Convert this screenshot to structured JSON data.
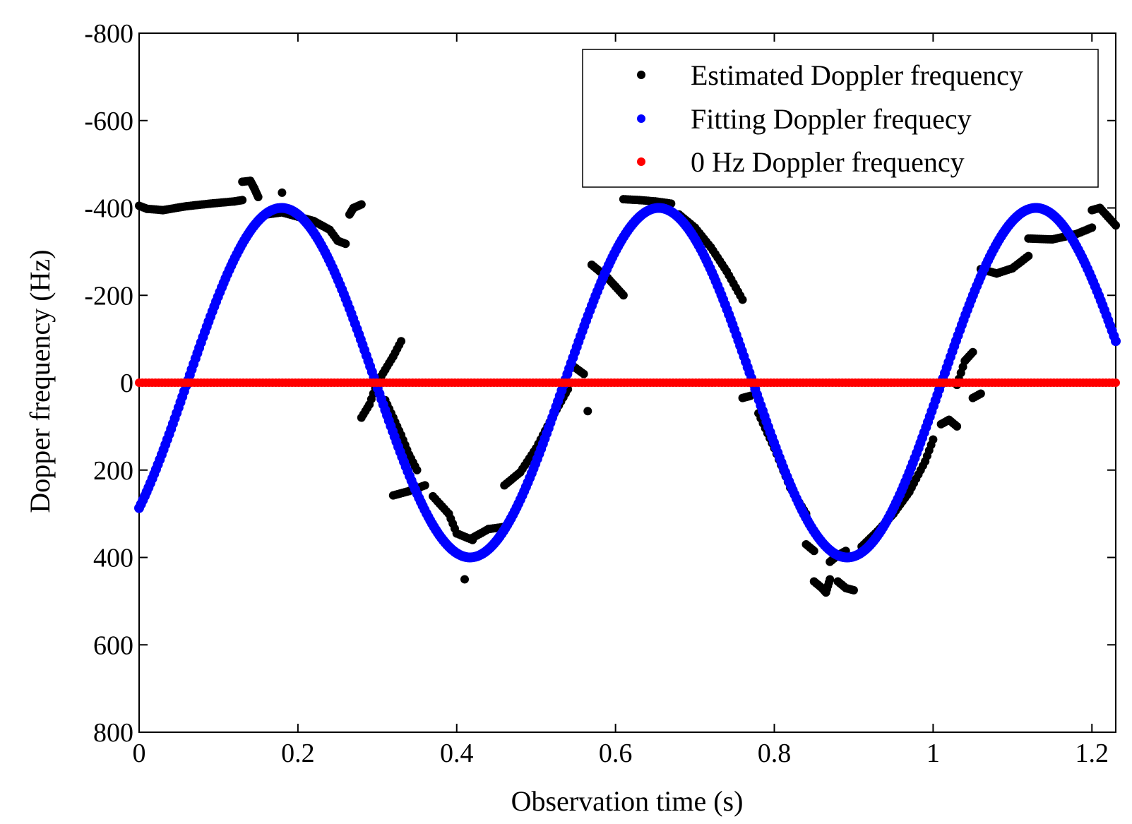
{
  "chart_data": {
    "type": "scatter",
    "title": "",
    "xlabel": "Observation time (s)",
    "ylabel": "Dopper frequency (Hz)",
    "xlim": [
      0,
      1.23
    ],
    "ylim": [
      -800,
      800
    ],
    "y_reversed": true,
    "grid": false,
    "legend_position": "top-right",
    "x_ticks": [
      0,
      0.2,
      0.4,
      0.6,
      0.8,
      1,
      1.2
    ],
    "x_tick_labels": [
      "0",
      "0.2",
      "0.4",
      "0.6",
      "0.8",
      "1",
      "1.2"
    ],
    "y_ticks": [
      -800,
      -600,
      -400,
      -200,
      0,
      200,
      400,
      600,
      800
    ],
    "y_tick_labels": [
      "-800",
      "-600",
      "-400",
      "-200",
      "0",
      "200",
      "400",
      "600",
      "800"
    ],
    "series": [
      {
        "name": "Estimated Doppler frequency",
        "color": "#000000",
        "kind": "segments",
        "segments": [
          {
            "x": [
              0.0,
              0.01,
              0.03,
              0.06,
              0.09,
              0.12,
              0.13
            ],
            "y": [
              -405,
              -398,
              -395,
              -404,
              -410,
              -415,
              -418
            ]
          },
          {
            "x": [
              0.13,
              0.14,
              0.145,
              0.15
            ],
            "y": [
              -460,
              -462,
              -445,
              -425
            ]
          },
          {
            "x": [
              0.16,
              0.18,
              0.2,
              0.22,
              0.24,
              0.25,
              0.26
            ],
            "y": [
              -385,
              -390,
              -380,
              -370,
              -350,
              -325,
              -318
            ]
          },
          {
            "x": [
              0.18
            ],
            "y": [
              -435
            ]
          },
          {
            "x": [
              0.265,
              0.27,
              0.28
            ],
            "y": [
              -385,
              -400,
              -408
            ]
          },
          {
            "x": [
              0.28,
              0.29,
              0.3,
              0.31,
              0.32,
              0.33
            ],
            "y": [
              80,
              50,
              0,
              -30,
              -60,
              -95
            ]
          },
          {
            "x": [
              0.31,
              0.32,
              0.33,
              0.34,
              0.35
            ],
            "y": [
              40,
              80,
              120,
              165,
              200
            ]
          },
          {
            "x": [
              0.32,
              0.34,
              0.36
            ],
            "y": [
              258,
              248,
              235
            ]
          },
          {
            "x": [
              0.37,
              0.39,
              0.4,
              0.42
            ],
            "y": [
              260,
              300,
              345,
              360
            ]
          },
          {
            "x": [
              0.41
            ],
            "y": [
              450
            ]
          },
          {
            "x": [
              0.42,
              0.44,
              0.46
            ],
            "y": [
              355,
              335,
              330
            ]
          },
          {
            "x": [
              0.46,
              0.48,
              0.5,
              0.52,
              0.54
            ],
            "y": [
              235,
              205,
              150,
              80,
              15
            ]
          },
          {
            "x": [
              0.545,
              0.56
            ],
            "y": [
              -40,
              -20
            ]
          },
          {
            "x": [
              0.565
            ],
            "y": [
              65
            ]
          },
          {
            "x": [
              0.57,
              0.58,
              0.59,
              0.6,
              0.61
            ],
            "y": [
              -270,
              -255,
              -240,
              -220,
              -200
            ]
          },
          {
            "x": [
              0.61,
              0.63,
              0.65,
              0.67
            ],
            "y": [
              -420,
              -418,
              -415,
              -410
            ]
          },
          {
            "x": [
              0.68,
              0.7,
              0.72,
              0.74,
              0.76
            ],
            "y": [
              -385,
              -355,
              -310,
              -255,
              -190
            ]
          },
          {
            "x": [
              0.76,
              0.77
            ],
            "y": [
              35,
              30
            ]
          },
          {
            "x": [
              0.78,
              0.8,
              0.82,
              0.84
            ],
            "y": [
              70,
              150,
              240,
              300
            ]
          },
          {
            "x": [
              0.84,
              0.85
            ],
            "y": [
              370,
              385
            ]
          },
          {
            "x": [
              0.85,
              0.86,
              0.865,
              0.87
            ],
            "y": [
              455,
              470,
              480,
              450
            ]
          },
          {
            "x": [
              0.87,
              0.88,
              0.89
            ],
            "y": [
              410,
              395,
              385
            ]
          },
          {
            "x": [
              0.88,
              0.89,
              0.9
            ],
            "y": [
              455,
              470,
              475
            ]
          },
          {
            "x": [
              0.91,
              0.93,
              0.95,
              0.97,
              0.99,
              1.0
            ],
            "y": [
              375,
              340,
              300,
              250,
              180,
              130
            ]
          },
          {
            "x": [
              1.01,
              1.02,
              1.03
            ],
            "y": [
              95,
              85,
              100
            ]
          },
          {
            "x": [
              1.03,
              1.04,
              1.05
            ],
            "y": [
              5,
              -50,
              -70
            ]
          },
          {
            "x": [
              1.05,
              1.06
            ],
            "y": [
              35,
              25
            ]
          },
          {
            "x": [
              1.06,
              1.08,
              1.1,
              1.12
            ],
            "y": [
              -260,
              -250,
              -262,
              -290
            ]
          },
          {
            "x": [
              1.12,
              1.15,
              1.18,
              1.2
            ],
            "y": [
              -330,
              -328,
              -340,
              -355
            ]
          },
          {
            "x": [
              1.2,
              1.21,
              1.22,
              1.23
            ],
            "y": [
              -395,
              -400,
              -380,
              -360
            ]
          }
        ]
      },
      {
        "name": "Fitting Doppler frequecy",
        "color": "#0000ff",
        "kind": "sine",
        "amplitude": 400,
        "frequency_hz": 2.105,
        "phase_rad": -0.8
      },
      {
        "name": "0 Hz Doppler frequency",
        "color": "#ff0000",
        "kind": "constant",
        "value": 0
      }
    ]
  }
}
